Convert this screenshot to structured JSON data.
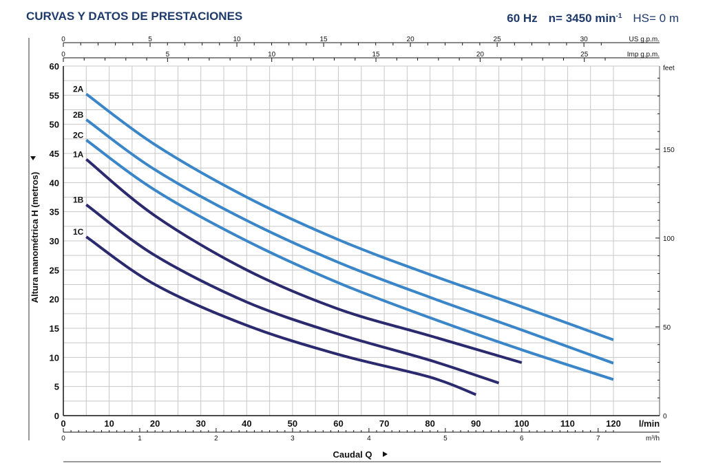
{
  "header": {
    "title": "CURVAS Y DATOS DE PRESTACIONES",
    "freq": "60 Hz",
    "speed_prefix": "n= 3450 min",
    "speed_sup": "-1",
    "hs": "HS= 0 m"
  },
  "colors": {
    "A_series": "#3a86c8",
    "B_series": "#2c2a6e",
    "grid": "#c7c7c7",
    "text": "#1d3a6b"
  },
  "chart_data": {
    "type": "line",
    "ylabel": "Altura manométrica H (metros)",
    "xlabel": "Caudal Q",
    "x_unit": "l/min",
    "ylim": [
      0,
      60
    ],
    "xlim": [
      0,
      120
    ],
    "grid": true,
    "y_ticks": [
      "0",
      "5",
      "10",
      "15",
      "20",
      "25",
      "30",
      "35",
      "40",
      "45",
      "50",
      "55",
      "60"
    ],
    "x_ticks": [
      "0",
      "10",
      "20",
      "30",
      "40",
      "50",
      "60",
      "70",
      "80",
      "90",
      "100",
      "110",
      "120"
    ],
    "secondary_axes": {
      "us_gpm": {
        "unit": "US g.p.m.",
        "ticks": [
          "0",
          "5",
          "10",
          "15",
          "20",
          "25",
          "30"
        ]
      },
      "imp_gpm": {
        "unit": "Imp g.p.m.",
        "ticks": [
          "0",
          "5",
          "10",
          "15",
          "20",
          "25"
        ]
      },
      "m3h": {
        "unit": "m³/h",
        "ticks": [
          "0",
          "1",
          "2",
          "3",
          "4",
          "5",
          "6",
          "7"
        ]
      },
      "feet": {
        "unit": "feet",
        "ticks": [
          "0",
          "50",
          "100",
          "150"
        ]
      }
    },
    "series": [
      {
        "name": "2A",
        "group": "A",
        "x": [
          5,
          20,
          40,
          60,
          80,
          100,
          120
        ],
        "y": [
          55.2,
          46.5,
          37.5,
          30.2,
          24.2,
          18.7,
          13
        ]
      },
      {
        "name": "2B",
        "group": "A",
        "x": [
          5,
          20,
          40,
          60,
          80,
          100,
          120
        ],
        "y": [
          50.8,
          42.2,
          33.5,
          26.3,
          20.3,
          14.7,
          9
        ]
      },
      {
        "name": "2C",
        "group": "A",
        "x": [
          5,
          20,
          40,
          60,
          80,
          100,
          120
        ],
        "y": [
          47.3,
          38.7,
          30,
          22.8,
          16.8,
          11.3,
          6.2
        ]
      },
      {
        "name": "1A",
        "group": "B",
        "x": [
          5,
          20,
          40,
          60,
          80,
          100
        ],
        "y": [
          44,
          34.3,
          25,
          18.3,
          13.7,
          9.1
        ]
      },
      {
        "name": "1B",
        "group": "B",
        "x": [
          5,
          20,
          40,
          60,
          80,
          95
        ],
        "y": [
          36.2,
          27.5,
          19.5,
          14,
          9.5,
          5.6
        ]
      },
      {
        "name": "1C",
        "group": "B",
        "x": [
          5,
          20,
          40,
          60,
          80,
          90
        ],
        "y": [
          30.7,
          22.5,
          15.5,
          10.5,
          6.6,
          3.6
        ]
      }
    ]
  }
}
